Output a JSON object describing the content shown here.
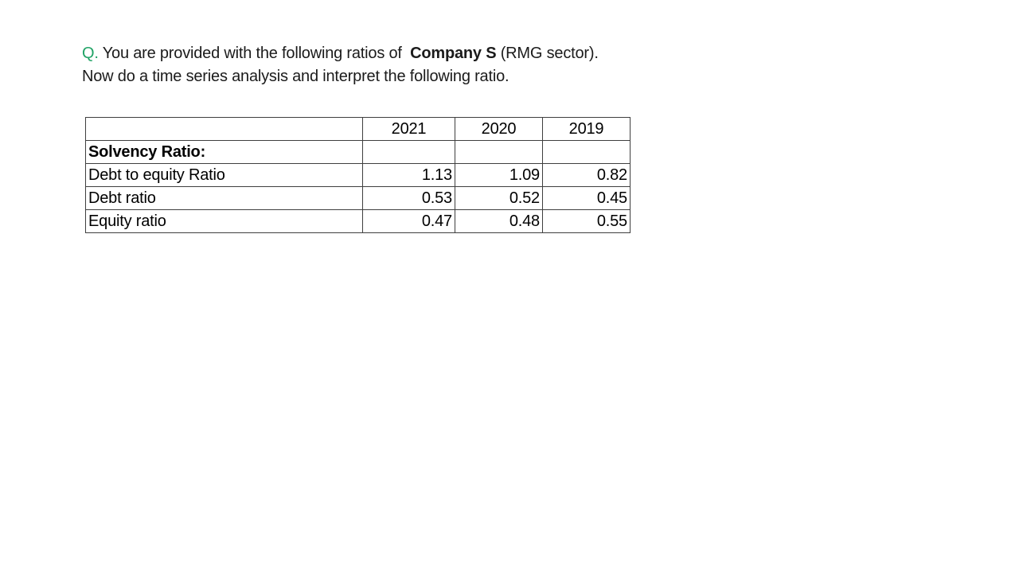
{
  "question": {
    "prefix": "Q.",
    "line1_part1": " You are provided with the following ratios of ",
    "company": "Company S",
    "line1_part2": " (RMG sector).",
    "line2": "Now do a time series analysis and interpret the following ratio."
  },
  "colors": {
    "q_prefix_green": "#21a366",
    "body_text": "#1b1b1b",
    "table_border": "#3f3f3f",
    "background": "#ffffff"
  },
  "chart_data": {
    "type": "table",
    "columns": [
      "",
      "2021",
      "2020",
      "2019"
    ],
    "rows": [
      {
        "label": "Solvency Ratio:",
        "bold": true,
        "values": [
          "",
          "",
          ""
        ]
      },
      {
        "label": "Debt to equity Ratio",
        "bold": false,
        "values": [
          "1.13",
          "1.09",
          "0.82"
        ]
      },
      {
        "label": "Debt ratio",
        "bold": false,
        "values": [
          "0.53",
          "0.52",
          "0.45"
        ]
      },
      {
        "label": "Equity ratio",
        "bold": false,
        "values": [
          "0.47",
          "0.48",
          "0.55"
        ]
      }
    ]
  }
}
